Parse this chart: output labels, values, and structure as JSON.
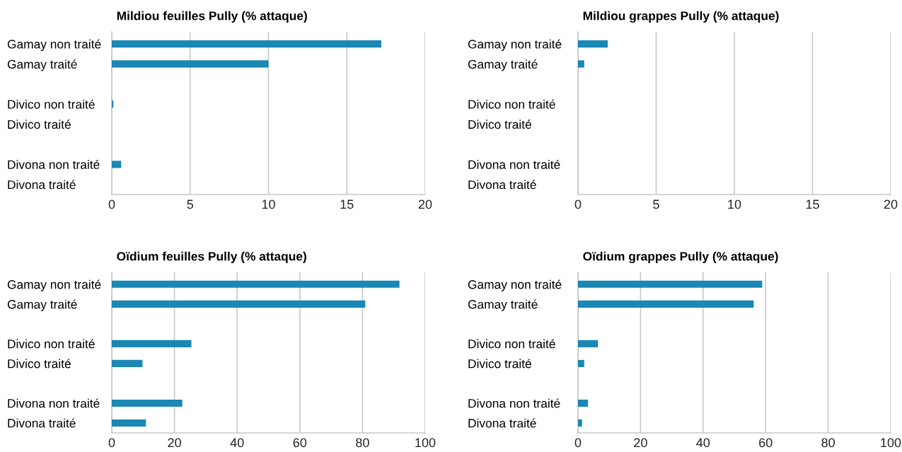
{
  "chart_data": [
    {
      "type": "bar",
      "orientation": "horizontal",
      "title": "Mildiou feuilles Pully (% attaque)",
      "categories": [
        "Gamay non traité",
        "Gamay traité",
        null,
        "Divico non traité",
        "Divico traité",
        null,
        "Divona non traité",
        "Divona traité"
      ],
      "values": [
        17.2,
        10.0,
        null,
        0.1,
        0,
        null,
        0.6,
        0
      ],
      "color": "#1a87b4",
      "xlim": [
        0,
        20
      ],
      "xticks": [
        0,
        5,
        10,
        15,
        20
      ],
      "grid": "x"
    },
    {
      "type": "bar",
      "orientation": "horizontal",
      "title": "Mildiou grappes Pully (% attaque)",
      "categories": [
        "Gamay non traité",
        "Gamay traité",
        null,
        "Divico non traité",
        "Divico traité",
        null,
        "Divona non traité",
        "Divona traité"
      ],
      "values": [
        1.9,
        0.4,
        null,
        0,
        0,
        null,
        0,
        0
      ],
      "color": "#1a87b4",
      "xlim": [
        0,
        20
      ],
      "xticks": [
        0,
        5,
        10,
        15,
        20
      ],
      "grid": "x"
    },
    {
      "type": "bar",
      "orientation": "horizontal",
      "title": "Oïdium feuilles Pully (% attaque)",
      "categories": [
        "Gamay non traité",
        "Gamay traité",
        null,
        "Divico non traité",
        "Divico traité",
        null,
        "Divona non traité",
        "Divona traité"
      ],
      "values": [
        91.8,
        80.9,
        null,
        25.4,
        9.8,
        null,
        22.5,
        10.9
      ],
      "color": "#1a87b4",
      "xlim": [
        0,
        100
      ],
      "xticks": [
        0,
        20,
        40,
        60,
        80,
        100
      ],
      "grid": "x"
    },
    {
      "type": "bar",
      "orientation": "horizontal",
      "title": "Oïdium grappes Pully (% attaque)",
      "categories": [
        "Gamay non traité",
        "Gamay traité",
        null,
        "Divico non traité",
        "Divico traité",
        null,
        "Divona non traité",
        "Divona traité"
      ],
      "values": [
        58.9,
        56.2,
        null,
        6.4,
        2.0,
        null,
        3.2,
        1.3
      ],
      "color": "#1a87b4",
      "xlim": [
        0,
        100
      ],
      "xticks": [
        0,
        20,
        40,
        60,
        80,
        100
      ],
      "grid": "x"
    }
  ]
}
